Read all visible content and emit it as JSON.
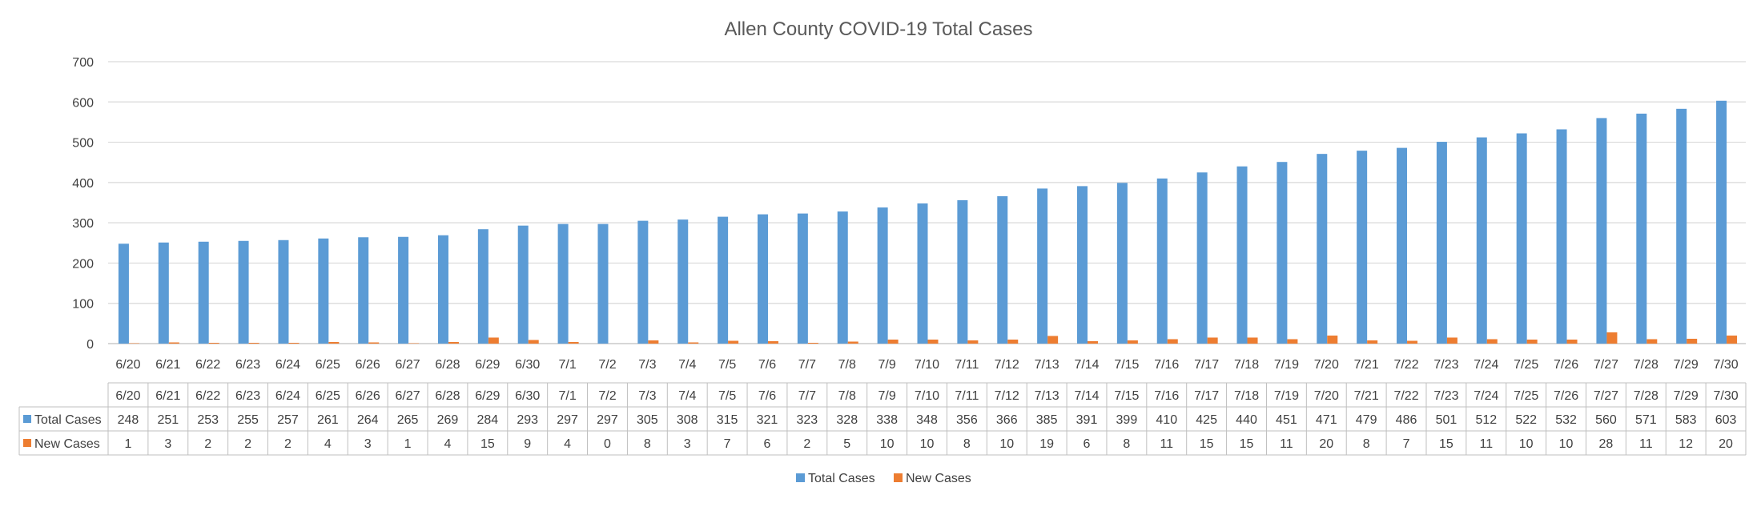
{
  "chart_data": {
    "type": "bar",
    "title": "Allen County COVID-19 Total Cases",
    "categories": [
      "6/20",
      "6/21",
      "6/22",
      "6/23",
      "6/24",
      "6/25",
      "6/26",
      "6/27",
      "6/28",
      "6/29",
      "6/30",
      "7/1",
      "7/2",
      "7/3",
      "7/4",
      "7/5",
      "7/6",
      "7/7",
      "7/8",
      "7/9",
      "7/10",
      "7/11",
      "7/12",
      "7/13",
      "7/14",
      "7/15",
      "7/16",
      "7/17",
      "7/18",
      "7/19",
      "7/20",
      "7/21",
      "7/22",
      "7/23",
      "7/24",
      "7/25",
      "7/26",
      "7/27",
      "7/28",
      "7/29",
      "7/30"
    ],
    "series": [
      {
        "name": "Total Cases",
        "color": "#5B9BD5",
        "values": [
          248,
          251,
          253,
          255,
          257,
          261,
          264,
          265,
          269,
          284,
          293,
          297,
          297,
          305,
          308,
          315,
          321,
          323,
          328,
          338,
          348,
          356,
          366,
          385,
          391,
          399,
          410,
          425,
          440,
          451,
          471,
          479,
          486,
          501,
          512,
          522,
          532,
          560,
          571,
          583,
          603
        ]
      },
      {
        "name": "New Cases",
        "color": "#ED7D31",
        "values": [
          1,
          3,
          2,
          2,
          2,
          4,
          3,
          1,
          4,
          15,
          9,
          4,
          0,
          8,
          3,
          7,
          6,
          2,
          5,
          10,
          10,
          8,
          10,
          19,
          6,
          8,
          11,
          15,
          15,
          11,
          20,
          8,
          7,
          15,
          11,
          10,
          10,
          28,
          11,
          12,
          20
        ]
      }
    ],
    "ylim": [
      0,
      700
    ],
    "yticks": [
      "0",
      "100",
      "200",
      "300",
      "400",
      "500",
      "600",
      "700"
    ],
    "grid": true,
    "legend_position": "bottom",
    "data_table": true
  }
}
